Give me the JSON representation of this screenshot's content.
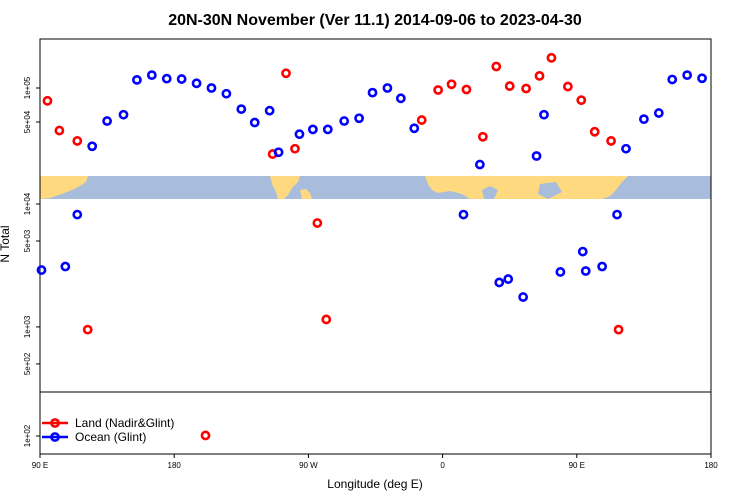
{
  "chart_data": {
    "type": "scatter",
    "title": "20N-30N November (Ver 11.1)   2014-09-06 to 2023-04-30",
    "xlabel": "Longitude (deg E)",
    "ylabel": "N Total",
    "x_tick_labels": [
      "90 E",
      "180",
      "90 W",
      "0",
      "90 E",
      "180"
    ],
    "x_ticks_unwrapped": [
      90,
      180,
      270,
      360,
      450,
      540
    ],
    "xlim_unwrapped": [
      90,
      540
    ],
    "top_panel": {
      "y_tick_labels": [
        "5e+04",
        "1e+05"
      ],
      "y_ticks": [
        50000,
        100000
      ],
      "ylim": [
        20000,
        200000
      ]
    },
    "middle_panel": {
      "y_tick_labels": [
        "5e+02",
        "1e+03",
        "5e+03",
        "1e+04"
      ],
      "y_ticks": [
        500,
        1000,
        5000,
        10000
      ],
      "ylim": [
        250,
        11000
      ]
    },
    "bottom_panel": {
      "y_tick_labels": [
        "1e+02"
      ],
      "y_ticks": [
        100
      ],
      "ylim": [
        80,
        150
      ]
    },
    "map_strip": "world land/ocean map",
    "legend_position": "bottom-left",
    "series": [
      {
        "name": "Land (Nadir&Glint)",
        "color": "#ff0000",
        "points": [
          {
            "x": 95,
            "y": 77000
          },
          {
            "x": 103,
            "y": 42000
          },
          {
            "x": 115,
            "y": 34000
          },
          {
            "x": 122,
            "y": 950
          },
          {
            "x": 201,
            "y": 102
          },
          {
            "x": 246,
            "y": 26000
          },
          {
            "x": 255,
            "y": 135000
          },
          {
            "x": 261,
            "y": 29000
          },
          {
            "x": 276,
            "y": 7000
          },
          {
            "x": 282,
            "y": 1150
          },
          {
            "x": 346,
            "y": 52000
          },
          {
            "x": 357,
            "y": 96000
          },
          {
            "x": 366,
            "y": 108000
          },
          {
            "x": 376,
            "y": 97000
          },
          {
            "x": 387,
            "y": 37000
          },
          {
            "x": 396,
            "y": 155000
          },
          {
            "x": 405,
            "y": 104000
          },
          {
            "x": 416,
            "y": 99000
          },
          {
            "x": 425,
            "y": 128000
          },
          {
            "x": 433,
            "y": 185000
          },
          {
            "x": 444,
            "y": 103000
          },
          {
            "x": 453,
            "y": 78000
          },
          {
            "x": 462,
            "y": 41000
          },
          {
            "x": 473,
            "y": 34000
          },
          {
            "x": 478,
            "y": 950
          }
        ]
      },
      {
        "name": "Ocean (Glint)",
        "color": "#0000ff",
        "points": [
          {
            "x": 91,
            "y": 2900
          },
          {
            "x": 107,
            "y": 3100
          },
          {
            "x": 115,
            "y": 8200
          },
          {
            "x": 125,
            "y": 30500
          },
          {
            "x": 135,
            "y": 51000
          },
          {
            "x": 146,
            "y": 58000
          },
          {
            "x": 155,
            "y": 118000
          },
          {
            "x": 165,
            "y": 130000
          },
          {
            "x": 175,
            "y": 121000
          },
          {
            "x": 185,
            "y": 120000
          },
          {
            "x": 195,
            "y": 110000
          },
          {
            "x": 205,
            "y": 100000
          },
          {
            "x": 215,
            "y": 89000
          },
          {
            "x": 225,
            "y": 65000
          },
          {
            "x": 234,
            "y": 49500
          },
          {
            "x": 244,
            "y": 63000
          },
          {
            "x": 250,
            "y": 27000
          },
          {
            "x": 264,
            "y": 39000
          },
          {
            "x": 273,
            "y": 43000
          },
          {
            "x": 283,
            "y": 43000
          },
          {
            "x": 294,
            "y": 51000
          },
          {
            "x": 304,
            "y": 54000
          },
          {
            "x": 313,
            "y": 91000
          },
          {
            "x": 323,
            "y": 100000
          },
          {
            "x": 332,
            "y": 81000
          },
          {
            "x": 341,
            "y": 44000
          },
          {
            "x": 374,
            "y": 8200
          },
          {
            "x": 385,
            "y": 21000
          },
          {
            "x": 398,
            "y": 2300
          },
          {
            "x": 404,
            "y": 2450
          },
          {
            "x": 414,
            "y": 1750
          },
          {
            "x": 423,
            "y": 25000
          },
          {
            "x": 428,
            "y": 58000
          },
          {
            "x": 439,
            "y": 2800
          },
          {
            "x": 454,
            "y": 4100
          },
          {
            "x": 456,
            "y": 2850
          },
          {
            "x": 467,
            "y": 3100
          },
          {
            "x": 477,
            "y": 8200
          },
          {
            "x": 483,
            "y": 29000
          },
          {
            "x": 495,
            "y": 53000
          },
          {
            "x": 505,
            "y": 60000
          },
          {
            "x": 514,
            "y": 119000
          },
          {
            "x": 524,
            "y": 130000
          },
          {
            "x": 534,
            "y": 122000
          }
        ]
      }
    ]
  }
}
